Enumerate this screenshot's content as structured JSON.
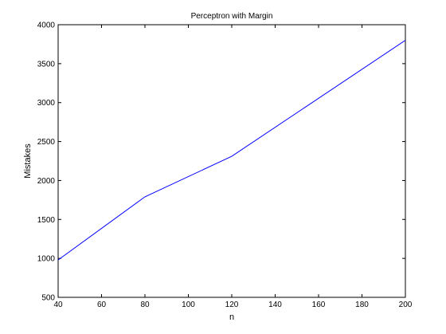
{
  "chart_data": {
    "type": "line",
    "title": "Perceptron with Margin",
    "xlabel": "n",
    "ylabel": "Mistakes",
    "xlim": [
      40,
      200
    ],
    "ylim": [
      500,
      4000
    ],
    "xticks": [
      40,
      60,
      80,
      100,
      120,
      140,
      160,
      180,
      200
    ],
    "yticks": [
      500,
      1000,
      1500,
      2000,
      2500,
      3000,
      3500,
      4000
    ],
    "grid": false,
    "series": [
      {
        "color": "#0000ff",
        "x": [
          40,
          80,
          120,
          200
        ],
        "y": [
          980,
          1790,
          2310,
          3800
        ]
      }
    ]
  }
}
